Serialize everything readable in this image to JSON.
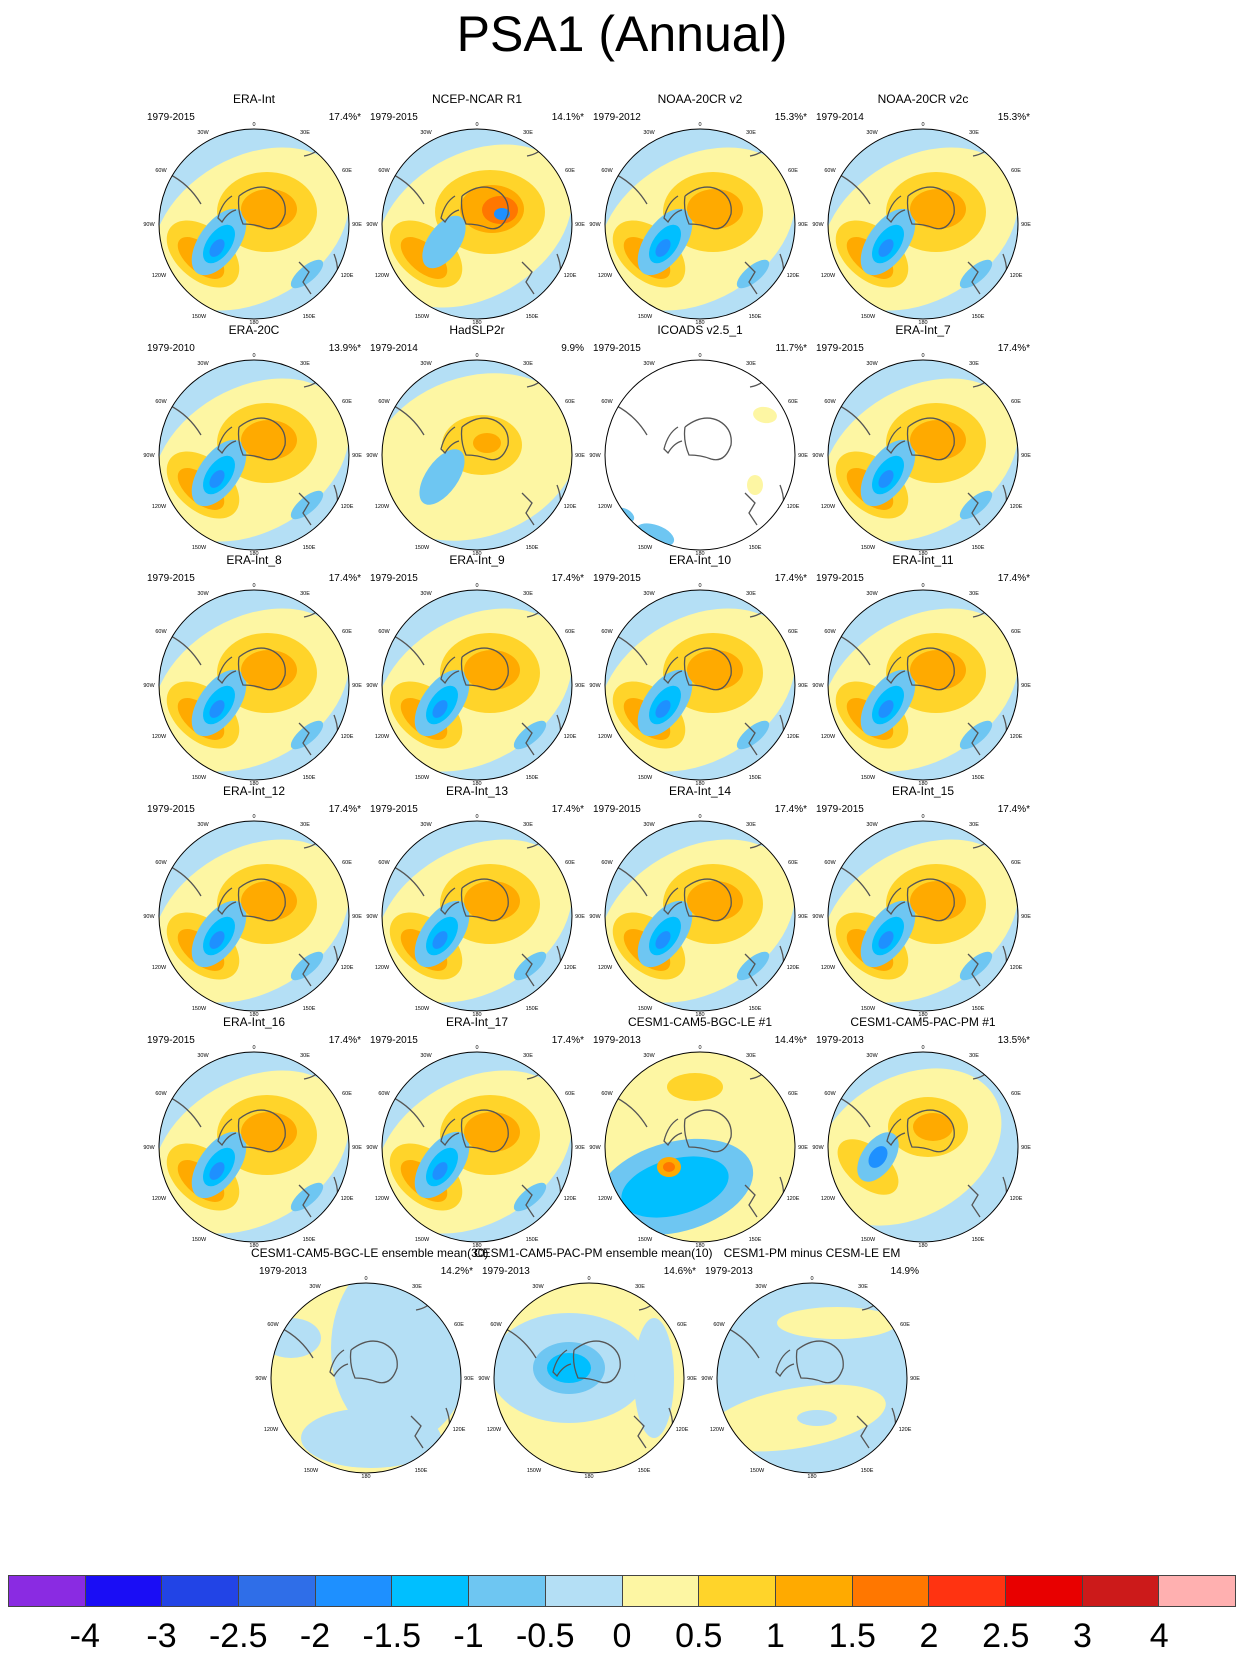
{
  "title": "PSA1 (Annual)",
  "map_tick_labels": {
    "top": "0",
    "top_left": "30W",
    "top_right": "30E",
    "left_upper": "60W",
    "right_upper": "60E",
    "left": "90W",
    "right": "90E",
    "left_lower": "120W",
    "right_lower": "120E",
    "bottom_left": "150W",
    "bottom_right": "150E",
    "bottom": "180"
  },
  "panels": [
    {
      "title": "ERA-Int",
      "years": "1979-2015",
      "pct": "17.4%*",
      "pattern": "std"
    },
    {
      "title": "NCEP-NCAR R1",
      "years": "1979-2015",
      "pct": "14.1%*",
      "pattern": "ncep"
    },
    {
      "title": "NOAA-20CR v2",
      "years": "1979-2012",
      "pct": "15.3%*",
      "pattern": "std"
    },
    {
      "title": "NOAA-20CR v2c",
      "years": "1979-2014",
      "pct": "15.3%*",
      "pattern": "std"
    },
    {
      "title": "ERA-20C",
      "years": "1979-2010",
      "pct": "13.9%*",
      "pattern": "std"
    },
    {
      "title": "HadSLP2r",
      "years": "1979-2014",
      "pct": "9.9%",
      "pattern": "hadslp"
    },
    {
      "title": "ICOADS v2.5_1",
      "years": "1979-2015",
      "pct": "11.7%*",
      "pattern": "icoads"
    },
    {
      "title": "ERA-Int_7",
      "years": "1979-2015",
      "pct": "17.4%*",
      "pattern": "std"
    },
    {
      "title": "ERA-Int_8",
      "years": "1979-2015",
      "pct": "17.4%*",
      "pattern": "std"
    },
    {
      "title": "ERA-Int_9",
      "years": "1979-2015",
      "pct": "17.4%*",
      "pattern": "std"
    },
    {
      "title": "ERA-Int_10",
      "years": "1979-2015",
      "pct": "17.4%*",
      "pattern": "std"
    },
    {
      "title": "ERA-Int_11",
      "years": "1979-2015",
      "pct": "17.4%*",
      "pattern": "std"
    },
    {
      "title": "ERA-Int_12",
      "years": "1979-2015",
      "pct": "17.4%*",
      "pattern": "std"
    },
    {
      "title": "ERA-Int_13",
      "years": "1979-2015",
      "pct": "17.4%*",
      "pattern": "std"
    },
    {
      "title": "ERA-Int_14",
      "years": "1979-2015",
      "pct": "17.4%*",
      "pattern": "std"
    },
    {
      "title": "ERA-Int_15",
      "years": "1979-2015",
      "pct": "17.4%*",
      "pattern": "std"
    },
    {
      "title": "ERA-Int_16",
      "years": "1979-2015",
      "pct": "17.4%*",
      "pattern": "std"
    },
    {
      "title": "ERA-Int_17",
      "years": "1979-2015",
      "pct": "17.4%*",
      "pattern": "std"
    },
    {
      "title": "CESM1-CAM5-BGC-LE #1",
      "years": "1979-2013",
      "pct": "14.4%*",
      "pattern": "bgc1"
    },
    {
      "title": "CESM1-CAM5-PAC-PM #1",
      "years": "1979-2013",
      "pct": "13.5%*",
      "pattern": "pac1"
    },
    {
      "title": "CESM1-CAM5-BGC-LE ensemble mean(30)",
      "years": "1979-2013",
      "pct": "14.2%*",
      "pattern": "lem"
    },
    {
      "title": "CESM1-CAM5-PAC-PM ensemble mean(10)",
      "years": "1979-2013",
      "pct": "14.6%*",
      "pattern": "pacm"
    },
    {
      "title": "CESM1-PM minus CESM-LE EM",
      "years": "1979-2013",
      "pct": "14.9%",
      "pattern": "diff"
    }
  ],
  "colorbar": {
    "colors": [
      "#8a2be2",
      "#1a0df5",
      "#2244e6",
      "#2f6ee8",
      "#1e90ff",
      "#00bfff",
      "#6ec6f2",
      "#b4dff5",
      "#fdf6a3",
      "#ffd42a",
      "#ffaa00",
      "#ff7700",
      "#ff3311",
      "#e80000",
      "#cc1a1a",
      "#ffb0b0"
    ],
    "labels": [
      "-4",
      "-3",
      "-2.5",
      "-2",
      "-1.5",
      "-1",
      "-0.5",
      "0",
      "0.5",
      "1",
      "1.5",
      "2",
      "2.5",
      "3",
      "4"
    ]
  }
}
